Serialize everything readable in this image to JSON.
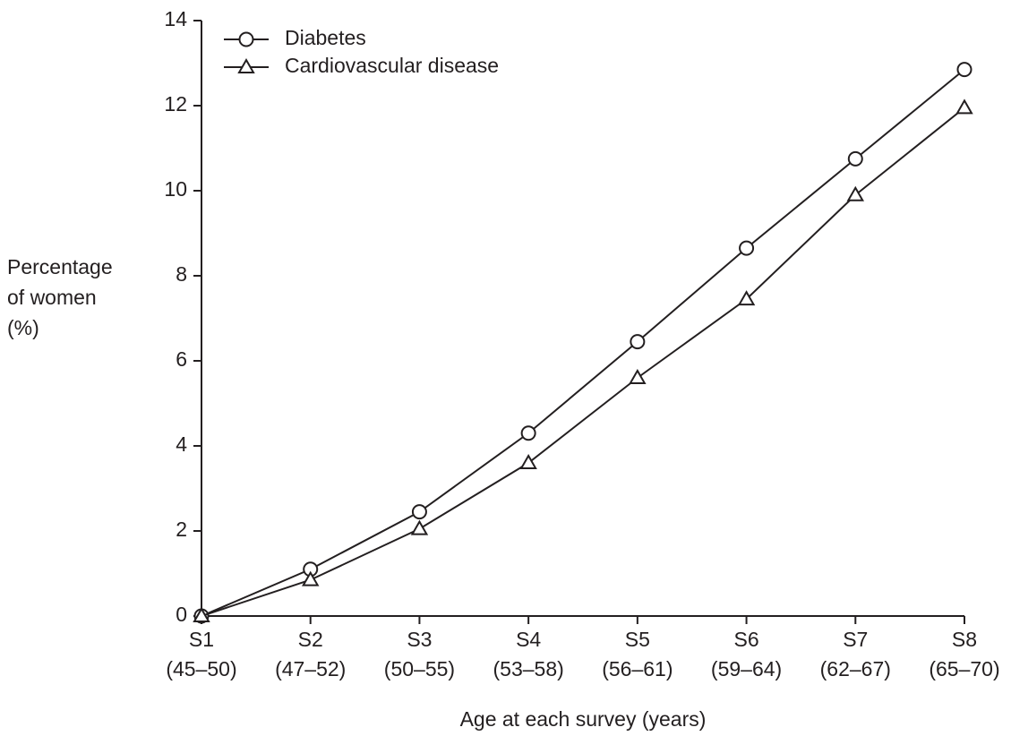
{
  "chart_data": {
    "type": "line",
    "y_label": [
      "Percentage",
      "of women",
      "(%)"
    ],
    "x_label": "Age at each survey (years)",
    "categories": [
      [
        "S1",
        "(45–50)"
      ],
      [
        "S2",
        "(47–52)"
      ],
      [
        "S3",
        "(50–55)"
      ],
      [
        "S4",
        "(53–58)"
      ],
      [
        "S5",
        "(56–61)"
      ],
      [
        "S6",
        "(59–64)"
      ],
      [
        "S7",
        "(62–67)"
      ],
      [
        "S8",
        "(65–70)"
      ]
    ],
    "series": [
      {
        "name": "Diabetes",
        "color": "#231f20",
        "marker": "circle",
        "values": [
          0,
          1.1,
          2.45,
          4.3,
          6.45,
          8.65,
          10.75,
          12.85
        ]
      },
      {
        "name": "Cardiovascular disease",
        "color": "#231f20",
        "marker": "triangle",
        "values": [
          0,
          0.85,
          2.05,
          3.6,
          5.6,
          7.45,
          9.9,
          11.95
        ]
      }
    ],
    "ylim": [
      0,
      14
    ],
    "yticks": [
      0,
      2,
      4,
      6,
      8,
      10,
      12,
      14
    ],
    "grid": false,
    "legend": "top-left"
  }
}
